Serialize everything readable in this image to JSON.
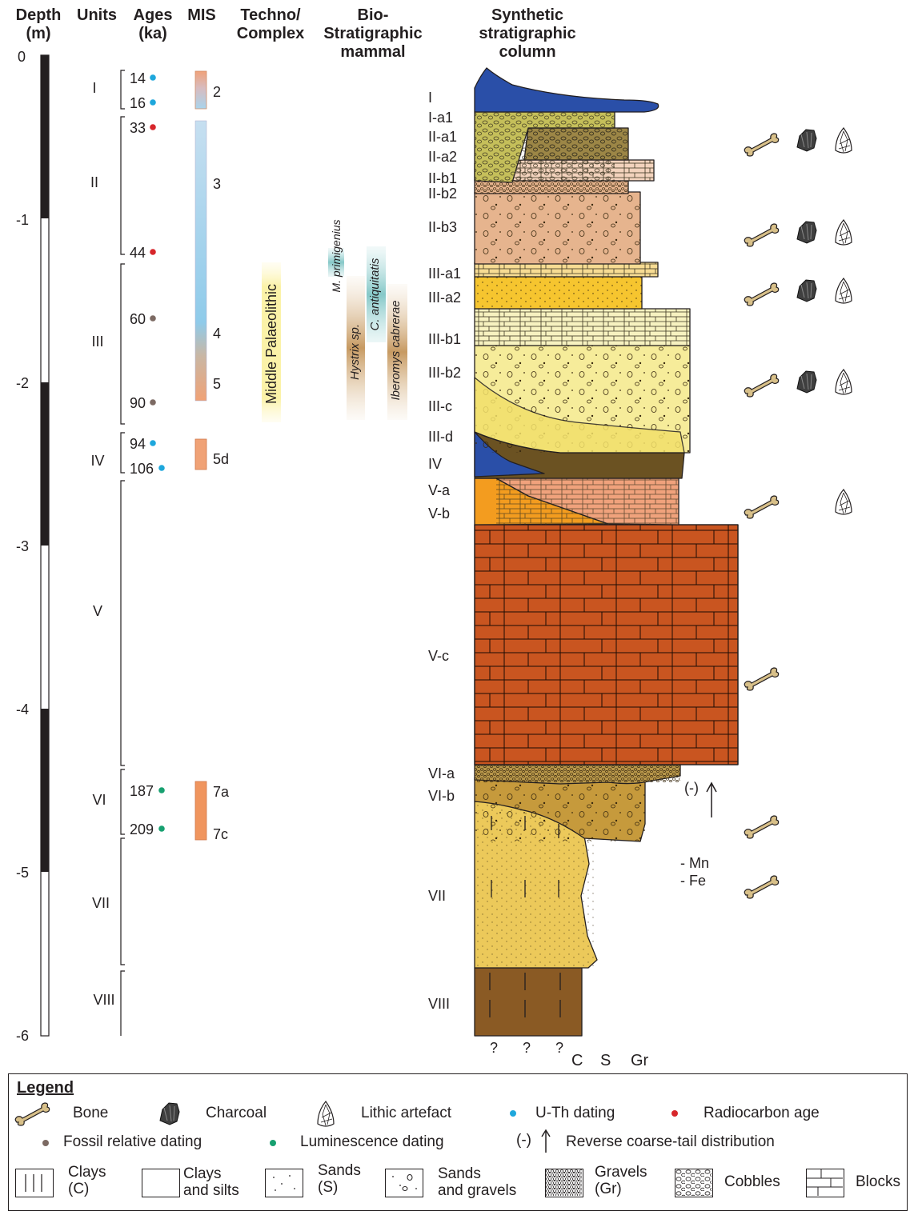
{
  "headers": {
    "depth": "Depth\n(m)",
    "units": "Units",
    "ages": "Ages\n(ka)",
    "mis": "MIS",
    "techno": "Techno/\nComplex",
    "bio": "Bio-\nStratigraphic\nmammal",
    "synthetic": "Synthetic\nstratigraphic\ncolumn"
  },
  "depth_ticks": [
    "0",
    "-1",
    "-2",
    "-3",
    "-4",
    "-5",
    "-6"
  ],
  "units": [
    "I",
    "II",
    "III",
    "IV",
    "V",
    "VI",
    "VII",
    "VIII"
  ],
  "ages": [
    {
      "value": "14",
      "method": "U-Th dating"
    },
    {
      "value": "16",
      "method": "U-Th dating"
    },
    {
      "value": "33",
      "method": "Radiocarbon age"
    },
    {
      "value": "44",
      "method": "Radiocarbon age"
    },
    {
      "value": "60",
      "method": "Fossil relative dating"
    },
    {
      "value": "90",
      "method": "Fossil relative dating"
    },
    {
      "value": "94",
      "method": "U-Th dating"
    },
    {
      "value": "106",
      "method": "U-Th dating"
    },
    {
      "value": "187",
      "method": "Luminescence dating"
    },
    {
      "value": "209",
      "method": "Luminescence dating"
    }
  ],
  "mis_labels": [
    "2",
    "3",
    "4",
    "5",
    "5d",
    "7a",
    "7c"
  ],
  "techno_complex": "Middle Palaeolithic",
  "taxa": [
    "M. primigenius",
    "Hystrix sp.",
    "C. antiquitatis",
    "Iberomys cabrerae"
  ],
  "layers": [
    "I",
    "I-a1",
    "II-a1",
    "II-a2",
    "II-b1",
    "II-b2",
    "II-b3",
    "III-a1",
    "III-a2",
    "III-b1",
    "III-b2",
    "III-c",
    "III-d",
    "IV",
    "V-a",
    "V-b",
    "V-c",
    "VI-a",
    "VI-b",
    "VII",
    "VIII"
  ],
  "grain_axis": {
    "unknown": [
      "?",
      "?",
      "?"
    ],
    "classes": [
      "C",
      "S",
      "Gr"
    ]
  },
  "annotations": {
    "reverse": "(-)",
    "mn": "- Mn",
    "fe": "- Fe"
  },
  "legend": {
    "title": "Legend",
    "bone": "Bone",
    "charcoal": "Charcoal",
    "lithic": "Lithic artefact",
    "uth": "U-Th dating",
    "radiocarbon": "Radiocarbon age",
    "fossil": "Fossil relative dating",
    "luminescence": "Luminescence dating",
    "reverse_symbol": "(-)",
    "reverse": "Reverse coarse-tail distribution",
    "clays": "Clays\n(C)",
    "clays_silts": "Clays\nand silts",
    "sands": "Sands\n(S)",
    "sands_gravels": "Sands\nand gravels",
    "gravels": "Gravels\n(Gr)",
    "cobbles": "Cobbles",
    "blocks": "Blocks"
  },
  "colors": {
    "uth": "#1ea7dc",
    "radiocarbon": "#d7262b",
    "fossil": "#7c6a63",
    "luminescence": "#17a070",
    "layer_I": "#2a4fa8",
    "layer_II_b": "#e6b48e",
    "layer_III_a2": "#f6c52f",
    "layer_III_b": "#f7ee9b",
    "layer_V_c": "#c95520",
    "layer_VII": "#ecc95a",
    "layer_VIII": "#8a5a24"
  }
}
